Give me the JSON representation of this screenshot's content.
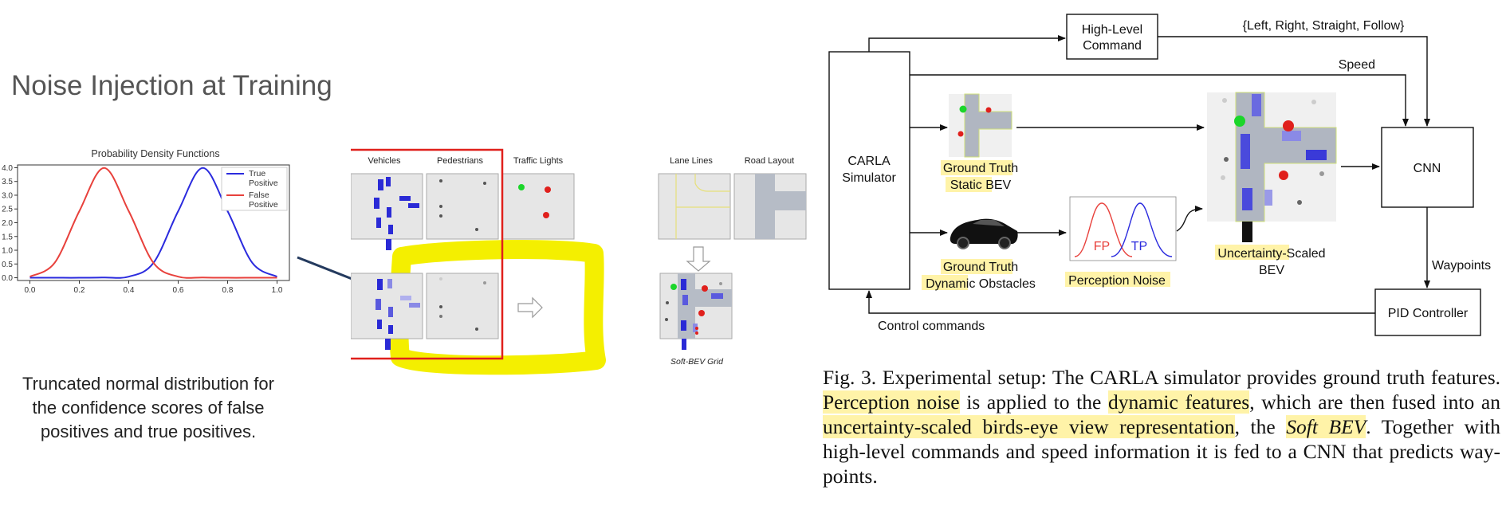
{
  "slide": {
    "title": "Noise Injection at Training",
    "caption": "Truncated normal distribution for the confidence scores of false positives and true positives."
  },
  "chart_data": {
    "type": "line",
    "title": "Probability Density Functions",
    "xlabel": "",
    "ylabel": "",
    "xlim": [
      -0.05,
      1.05
    ],
    "ylim": [
      -0.1,
      4.1
    ],
    "x_ticks": [
      "0.0",
      "0.2",
      "0.4",
      "0.6",
      "0.8",
      "1.0"
    ],
    "y_ticks": [
      "0.0",
      "0.5",
      "1.0",
      "1.5",
      "2.0",
      "2.5",
      "3.0",
      "3.5",
      "4.0"
    ],
    "legend_position": "top-right",
    "series": [
      {
        "name": "True Positive",
        "color": "#2b2bde",
        "x": [
          0.0,
          0.1,
          0.2,
          0.3,
          0.4,
          0.5,
          0.6,
          0.7,
          0.8,
          0.9,
          1.0
        ],
        "y": [
          0.0,
          0.0,
          0.0,
          0.01,
          0.04,
          0.54,
          2.42,
          3.99,
          2.42,
          0.54,
          0.04
        ]
      },
      {
        "name": "False Positive",
        "color": "#e8413c",
        "x": [
          0.0,
          0.1,
          0.2,
          0.3,
          0.4,
          0.5,
          0.6,
          0.7,
          0.8,
          0.9,
          1.0
        ],
        "y": [
          0.04,
          0.54,
          2.42,
          3.99,
          2.42,
          0.54,
          0.04,
          0.01,
          0.0,
          0.0,
          0.0
        ]
      }
    ]
  },
  "grid": {
    "columns": [
      "Vehicles",
      "Pedestrians",
      "Traffic Lights",
      "Lane Lines",
      "Road Layout"
    ],
    "result_label": "Soft-BEV Grid"
  },
  "setup": {
    "high_level_command": [
      "High-Level",
      "Command"
    ],
    "command_options": "{Left, Right, Straight, Follow}",
    "speed": "Speed",
    "carla": [
      "CARLA",
      "Simulator"
    ],
    "static_bev": [
      "Ground Truth",
      "Static BEV"
    ],
    "dynamic_obstacles": [
      "Ground Truth",
      "Dynamic Obstacles"
    ],
    "perception_noise": "Perception Noise",
    "fp": "FP",
    "tp": "TP",
    "uncertainty_bev": [
      "Uncertainty-Scaled",
      "BEV"
    ],
    "cnn": "CNN",
    "waypoints": "Waypoints",
    "pid": "PID Controller",
    "control": "Control commands"
  },
  "figure_caption": {
    "prefix": "Fig. 3.   Experimental setup: The CARLA simulator provides ground truth features. ",
    "hl1": "Perception noise",
    "mid1": " is applied to the ",
    "hl2": "dynamic features",
    "mid2": ", which are then fused into an ",
    "hl3": "uncertainty-scaled birds-eye view representation",
    "mid3": ", the ",
    "hl4": "Soft BEV",
    "suffix": ". Together with high-level commands and speed information it is fed to a CNN that predicts way-points."
  },
  "colors": {
    "highlight": "#fff3a8",
    "marker": "#f4ef00",
    "red_box": "#e0201c",
    "vehicle": "#2a2ad6"
  }
}
